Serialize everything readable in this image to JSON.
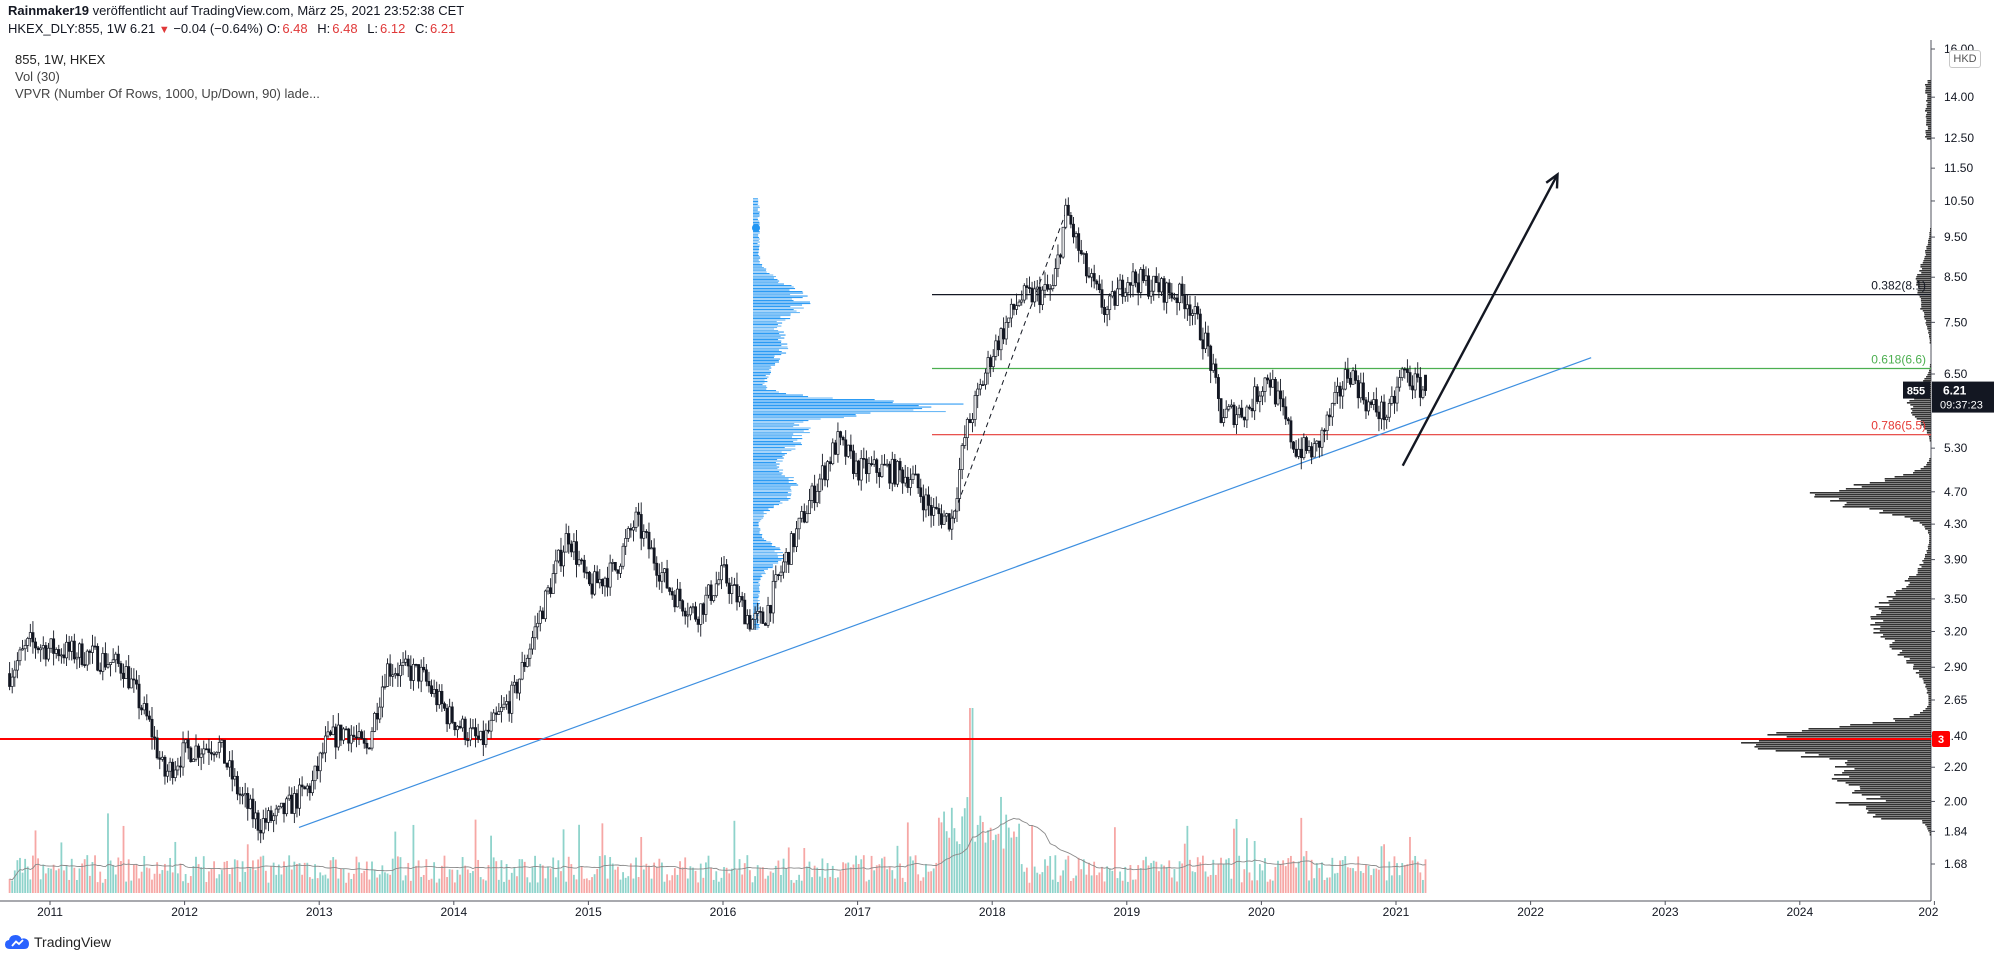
{
  "header": {
    "author_line": "Rainmaker19 veröffentlicht auf TradingView.com, März 25, 2021 23:52:38 CET",
    "author": "Rainmaker19",
    "published_text": "veröffentlicht auf TradingView.com, März 25, 2021 23:52:38 CET",
    "symbol_line_prefix": "HKEX_DLY:855, 1W",
    "last": "6.21",
    "change": "−0.04 (−0.64%)",
    "open_label": "O:",
    "open": "6.48",
    "high_label": "H:",
    "high": "6.48",
    "low_label": "L:",
    "low": "6.12",
    "close_label": "C:",
    "close": "6.21"
  },
  "legend": {
    "line1": "855, 1W, HKEX",
    "line2": "Vol (30)",
    "line3": "VPVR (Number Of Rows, 1000, Up/Down, 90) lade..."
  },
  "currency": "HKD",
  "footer": {
    "brand": "TradingView"
  },
  "colors": {
    "up": "#26a69a",
    "down": "#ef5350",
    "trend": "#3d8fe0",
    "vpvr_blue": "#2196f3",
    "fib_black": "#131722",
    "fib_green": "#4caf50",
    "fib_red": "#e53935",
    "red_line": "#ff0000"
  },
  "chart_data": {
    "type": "candlestick",
    "x_ticks": [
      "2011",
      "2012",
      "2013",
      "2014",
      "2015",
      "2016",
      "2017",
      "2018",
      "2019",
      "2020",
      "2021",
      "2022",
      "2023",
      "2024",
      "202"
    ],
    "y_ticks": [
      "16.00",
      "14.00",
      "12.50",
      "11.50",
      "10.50",
      "9.50",
      "8.50",
      "7.50",
      "6.50",
      "5.30",
      "4.70",
      "4.30",
      "3.90",
      "3.50",
      "3.20",
      "2.90",
      "2.65",
      "2.40",
      "2.20",
      "2.00",
      "1.84",
      "1.68"
    ],
    "y_scale": "log",
    "price_anchors": [
      {
        "t": 2010.7,
        "p": 2.85
      },
      {
        "t": 2010.85,
        "p": 3.1
      },
      {
        "t": 2011.0,
        "p": 3.05
      },
      {
        "t": 2011.3,
        "p": 3.0
      },
      {
        "t": 2011.55,
        "p": 2.9
      },
      {
        "t": 2011.75,
        "p": 2.45
      },
      {
        "t": 2011.85,
        "p": 2.15
      },
      {
        "t": 2012.0,
        "p": 2.3
      },
      {
        "t": 2012.25,
        "p": 2.35
      },
      {
        "t": 2012.4,
        "p": 2.05
      },
      {
        "t": 2012.55,
        "p": 1.88
      },
      {
        "t": 2012.7,
        "p": 1.92
      },
      {
        "t": 2012.95,
        "p": 2.1
      },
      {
        "t": 2013.05,
        "p": 2.35
      },
      {
        "t": 2013.2,
        "p": 2.45
      },
      {
        "t": 2013.35,
        "p": 2.3
      },
      {
        "t": 2013.5,
        "p": 2.9
      },
      {
        "t": 2013.75,
        "p": 2.85
      },
      {
        "t": 2013.95,
        "p": 2.55
      },
      {
        "t": 2014.2,
        "p": 2.35
      },
      {
        "t": 2014.45,
        "p": 2.7
      },
      {
        "t": 2014.6,
        "p": 3.2
      },
      {
        "t": 2014.85,
        "p": 4.2
      },
      {
        "t": 2015.0,
        "p": 3.6
      },
      {
        "t": 2015.2,
        "p": 3.8
      },
      {
        "t": 2015.35,
        "p": 4.35
      },
      {
        "t": 2015.6,
        "p": 3.6
      },
      {
        "t": 2015.8,
        "p": 3.35
      },
      {
        "t": 2016.0,
        "p": 3.75
      },
      {
        "t": 2016.2,
        "p": 3.3
      },
      {
        "t": 2016.3,
        "p": 3.3
      },
      {
        "t": 2016.45,
        "p": 3.85
      },
      {
        "t": 2016.65,
        "p": 4.6
      },
      {
        "t": 2016.85,
        "p": 5.4
      },
      {
        "t": 2017.0,
        "p": 5.0
      },
      {
        "t": 2017.2,
        "p": 5.0
      },
      {
        "t": 2017.4,
        "p": 4.9
      },
      {
        "t": 2017.55,
        "p": 4.45
      },
      {
        "t": 2017.7,
        "p": 4.35
      },
      {
        "t": 2017.8,
        "p": 5.5
      },
      {
        "t": 2018.0,
        "p": 6.9
      },
      {
        "t": 2018.2,
        "p": 8.0
      },
      {
        "t": 2018.45,
        "p": 8.2
      },
      {
        "t": 2018.55,
        "p": 10.2
      },
      {
        "t": 2018.7,
        "p": 8.6
      },
      {
        "t": 2018.85,
        "p": 7.7
      },
      {
        "t": 2019.0,
        "p": 8.5
      },
      {
        "t": 2019.2,
        "p": 8.3
      },
      {
        "t": 2019.45,
        "p": 8.0
      },
      {
        "t": 2019.6,
        "p": 7.0
      },
      {
        "t": 2019.7,
        "p": 5.8
      },
      {
        "t": 2019.9,
        "p": 5.9
      },
      {
        "t": 2020.05,
        "p": 6.5
      },
      {
        "t": 2020.25,
        "p": 5.3
      },
      {
        "t": 2020.4,
        "p": 5.25
      },
      {
        "t": 2020.55,
        "p": 6.0
      },
      {
        "t": 2020.65,
        "p": 6.6
      },
      {
        "t": 2020.8,
        "p": 5.95
      },
      {
        "t": 2020.95,
        "p": 5.8
      },
      {
        "t": 2021.05,
        "p": 6.55
      },
      {
        "t": 2021.15,
        "p": 6.3
      },
      {
        "t": 2021.23,
        "p": 6.21
      }
    ],
    "annotations": {
      "fib_levels": [
        {
          "label": "0.382(8.1)",
          "price": 8.1
        },
        {
          "label": "0.618(6.6)",
          "price": 6.6
        },
        {
          "label": "0.786(5.5)",
          "price": 5.5
        }
      ],
      "horizontal_line": {
        "price": 2.38,
        "badge": "3"
      },
      "trendline": [
        {
          "t": 2012.85,
          "p": 1.86
        },
        {
          "t": 2022.45,
          "p": 6.8
        }
      ],
      "arrow": [
        {
          "t": 2021.05,
          "p": 5.05
        },
        {
          "t": 2022.2,
          "p": 11.3
        }
      ],
      "dashed_line": [
        {
          "t": 2017.7,
          "p": 4.35
        },
        {
          "t": 2018.55,
          "p": 10.2
        }
      ],
      "last_price_label": {
        "symbol": "855",
        "price": "6.21",
        "countdown": "09:37:23"
      }
    }
  }
}
